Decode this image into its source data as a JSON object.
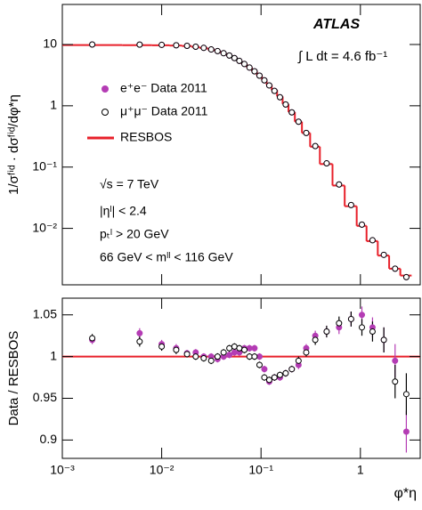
{
  "chart_data": [
    {
      "type": "scatter",
      "ylabel": "1/σᶠⁱᵈ · dσᶠⁱᵈ/dφ*η",
      "xscale": "log",
      "yscale": "log",
      "xlim": [
        0.001,
        4
      ],
      "ylim": [
        0.0012,
        45
      ],
      "xticks": [
        0.001,
        0.01,
        0.1,
        1
      ],
      "yticks": [
        10,
        1,
        {
          "value": 0.1,
          "label": "10⁻¹"
        },
        {
          "value": 0.01,
          "label": "10⁻²"
        }
      ],
      "annotations": [
        "ATLAS",
        "∫ L dt = 4.6 fb⁻¹",
        "√s = 7 TeV",
        "|ηˡ| < 2.4",
        "pₜˡ > 20 GeV",
        "66 GeV < mˡˡ < 116 GeV"
      ],
      "legend": "upper left",
      "x": [
        0.002,
        0.006,
        0.01,
        0.014,
        0.018,
        0.022,
        0.0265,
        0.0315,
        0.0365,
        0.042,
        0.048,
        0.054,
        0.0605,
        0.068,
        0.0765,
        0.086,
        0.0965,
        0.108,
        0.121,
        0.1365,
        0.155,
        0.177,
        0.204,
        0.2385,
        0.285,
        0.3515,
        0.4575,
        0.6095,
        0.8065,
        1.0355,
        1.3245,
        1.7215,
        2.2345,
        2.8995
      ],
      "series": [
        {
          "name": "e⁺e⁻ Data 2011",
          "color": "#b43cb4",
          "marker": "filled",
          "values": [
            10.0,
            9.95,
            9.85,
            9.7,
            9.5,
            9.2,
            8.8,
            8.3,
            7.8,
            7.2,
            6.6,
            6.0,
            5.4,
            4.8,
            4.2,
            3.65,
            3.1,
            2.6,
            2.15,
            1.75,
            1.38,
            1.05,
            0.78,
            0.55,
            0.36,
            0.22,
            0.115,
            0.052,
            0.024,
            0.0115,
            0.0064,
            0.0037,
            0.0022,
            0.0016
          ]
        },
        {
          "name": "μ⁺μ⁻ Data 2011",
          "color": "#000000",
          "marker": "open",
          "values": [
            10.0,
            9.95,
            9.85,
            9.7,
            9.5,
            9.2,
            8.8,
            8.3,
            7.8,
            7.2,
            6.6,
            6.0,
            5.4,
            4.8,
            4.2,
            3.65,
            3.1,
            2.6,
            2.15,
            1.75,
            1.38,
            1.05,
            0.78,
            0.55,
            0.36,
            0.22,
            0.115,
            0.052,
            0.024,
            0.0115,
            0.0064,
            0.0037,
            0.0022,
            0.0016
          ]
        },
        {
          "name": "RESBOS",
          "color": "#e8202a",
          "marker": "step",
          "bins": [
            0,
            0.004,
            0.008,
            0.012,
            0.016,
            0.02,
            0.024,
            0.029,
            0.034,
            0.039,
            0.045,
            0.051,
            0.057,
            0.064,
            0.072,
            0.081,
            0.091,
            0.102,
            0.114,
            0.128,
            0.145,
            0.165,
            0.189,
            0.219,
            0.258,
            0.312,
            0.391,
            0.524,
            0.695,
            0.918,
            1.153,
            1.496,
            1.947,
            2.522,
            3.277
          ],
          "values": [
            9.8,
            9.75,
            9.7,
            9.6,
            9.45,
            9.15,
            8.8,
            8.3,
            7.8,
            7.2,
            6.6,
            6.0,
            5.4,
            4.8,
            4.2,
            3.65,
            3.1,
            2.65,
            2.2,
            1.8,
            1.42,
            1.07,
            0.79,
            0.55,
            0.36,
            0.215,
            0.112,
            0.05,
            0.023,
            0.011,
            0.0062,
            0.0036,
            0.0022,
            0.0017
          ]
        }
      ]
    },
    {
      "type": "errorbar",
      "xlabel": "φ*η",
      "ylabel": "Data / RESBOS",
      "xscale": "log",
      "xlim": [
        0.001,
        4
      ],
      "ylim": [
        0.878,
        1.07
      ],
      "xticks": [
        {
          "value": 0.001,
          "label": "10⁻³"
        },
        {
          "value": 0.01,
          "label": "10⁻²"
        },
        {
          "value": 0.1,
          "label": "10⁻¹"
        },
        1
      ],
      "yticks": [
        0.9,
        0.95,
        1,
        1.05
      ],
      "hline": 1,
      "hline_color": "#e8202a",
      "x": [
        0.002,
        0.006,
        0.01,
        0.014,
        0.018,
        0.022,
        0.0265,
        0.0315,
        0.0365,
        0.042,
        0.048,
        0.054,
        0.0605,
        0.068,
        0.0765,
        0.086,
        0.0965,
        0.108,
        0.121,
        0.1365,
        0.155,
        0.177,
        0.204,
        0.2385,
        0.285,
        0.3515,
        0.4575,
        0.6095,
        0.8065,
        1.0355,
        1.3245,
        1.7215,
        2.2345,
        2.8995
      ],
      "series": [
        {
          "color": "#b43cb4",
          "marker": "filled",
          "values": [
            1.02,
            1.028,
            1.015,
            1.01,
            1.004,
            1.005,
            1.0,
            1.0,
            0.997,
            1.0,
            1.002,
            1.005,
            1.005,
            1.01,
            1.01,
            1.01,
            1.0,
            0.985,
            0.97,
            0.975,
            0.975,
            0.98,
            0.985,
            0.99,
            1.01,
            1.025,
            1.03,
            1.035,
            1.045,
            1.05,
            1.035,
            1.02,
            0.995,
            0.91
          ],
          "errors": [
            0.005,
            0.006,
            0.005,
            0.005,
            0.004,
            0.004,
            0.004,
            0.004,
            0.004,
            0.004,
            0.004,
            0.004,
            0.004,
            0.004,
            0.004,
            0.004,
            0.004,
            0.004,
            0.004,
            0.004,
            0.004,
            0.004,
            0.004,
            0.005,
            0.005,
            0.006,
            0.007,
            0.008,
            0.009,
            0.01,
            0.012,
            0.015,
            0.02,
            0.025
          ]
        },
        {
          "color": "#000000",
          "marker": "open",
          "values": [
            1.022,
            1.018,
            1.012,
            1.008,
            1.003,
            1.0,
            0.998,
            0.995,
            1.0,
            1.005,
            1.01,
            1.012,
            1.01,
            1.008,
            1.0,
            1.0,
            0.99,
            0.975,
            0.972,
            0.975,
            0.978,
            0.98,
            0.985,
            0.995,
            1.005,
            1.02,
            1.03,
            1.04,
            1.045,
            1.035,
            1.03,
            1.02,
            0.97,
            0.955
          ],
          "errors": [
            0.005,
            0.006,
            0.005,
            0.005,
            0.004,
            0.004,
            0.004,
            0.004,
            0.004,
            0.004,
            0.004,
            0.004,
            0.004,
            0.004,
            0.004,
            0.004,
            0.004,
            0.004,
            0.004,
            0.004,
            0.004,
            0.004,
            0.004,
            0.005,
            0.005,
            0.006,
            0.007,
            0.008,
            0.009,
            0.01,
            0.012,
            0.015,
            0.02,
            0.025
          ]
        }
      ]
    }
  ]
}
